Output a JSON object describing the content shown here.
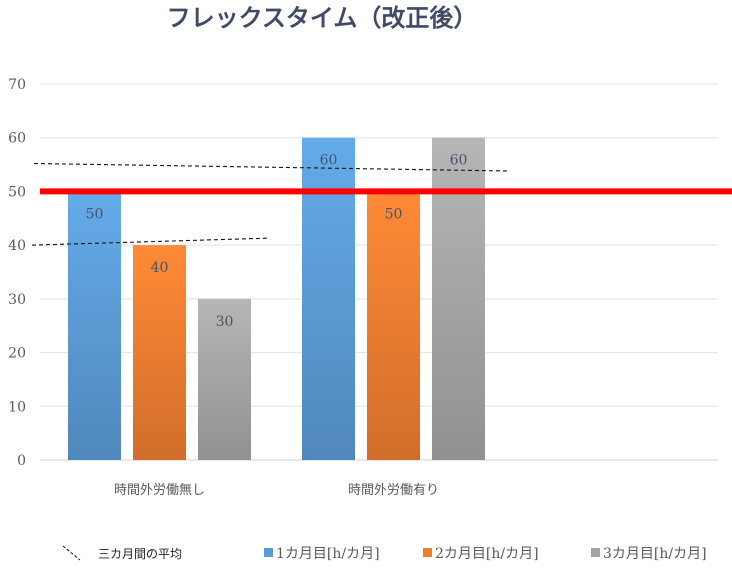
{
  "chart_data": {
    "type": "bar",
    "title": "フレックスタイム（改正後）",
    "categories": [
      "時間外労働無し",
      "時間外労働有り"
    ],
    "series": [
      {
        "name": "1カ月目[h/カ月]",
        "values": [
          50,
          60
        ],
        "color": "#5b9bd5"
      },
      {
        "name": "2カ月目[h/カ月]",
        "values": [
          40,
          50
        ],
        "color": "#ed7d31"
      },
      {
        "name": "3カ月目[h/カ月]",
        "values": [
          30,
          60
        ],
        "color": "#a5a5a5"
      }
    ],
    "ylim": [
      0,
      70
    ],
    "yticks": [
      0,
      10,
      20,
      30,
      40,
      50,
      60,
      70
    ],
    "grid": true,
    "reference_line": {
      "value": 50,
      "color": "#ff0000"
    },
    "average_trend": {
      "name": "三カ月間の平均",
      "lines": [
        {
          "from": 40,
          "to": 41.3
        },
        {
          "from": 55.2,
          "to": 53.8
        }
      ]
    },
    "legend_position": "bottom"
  }
}
